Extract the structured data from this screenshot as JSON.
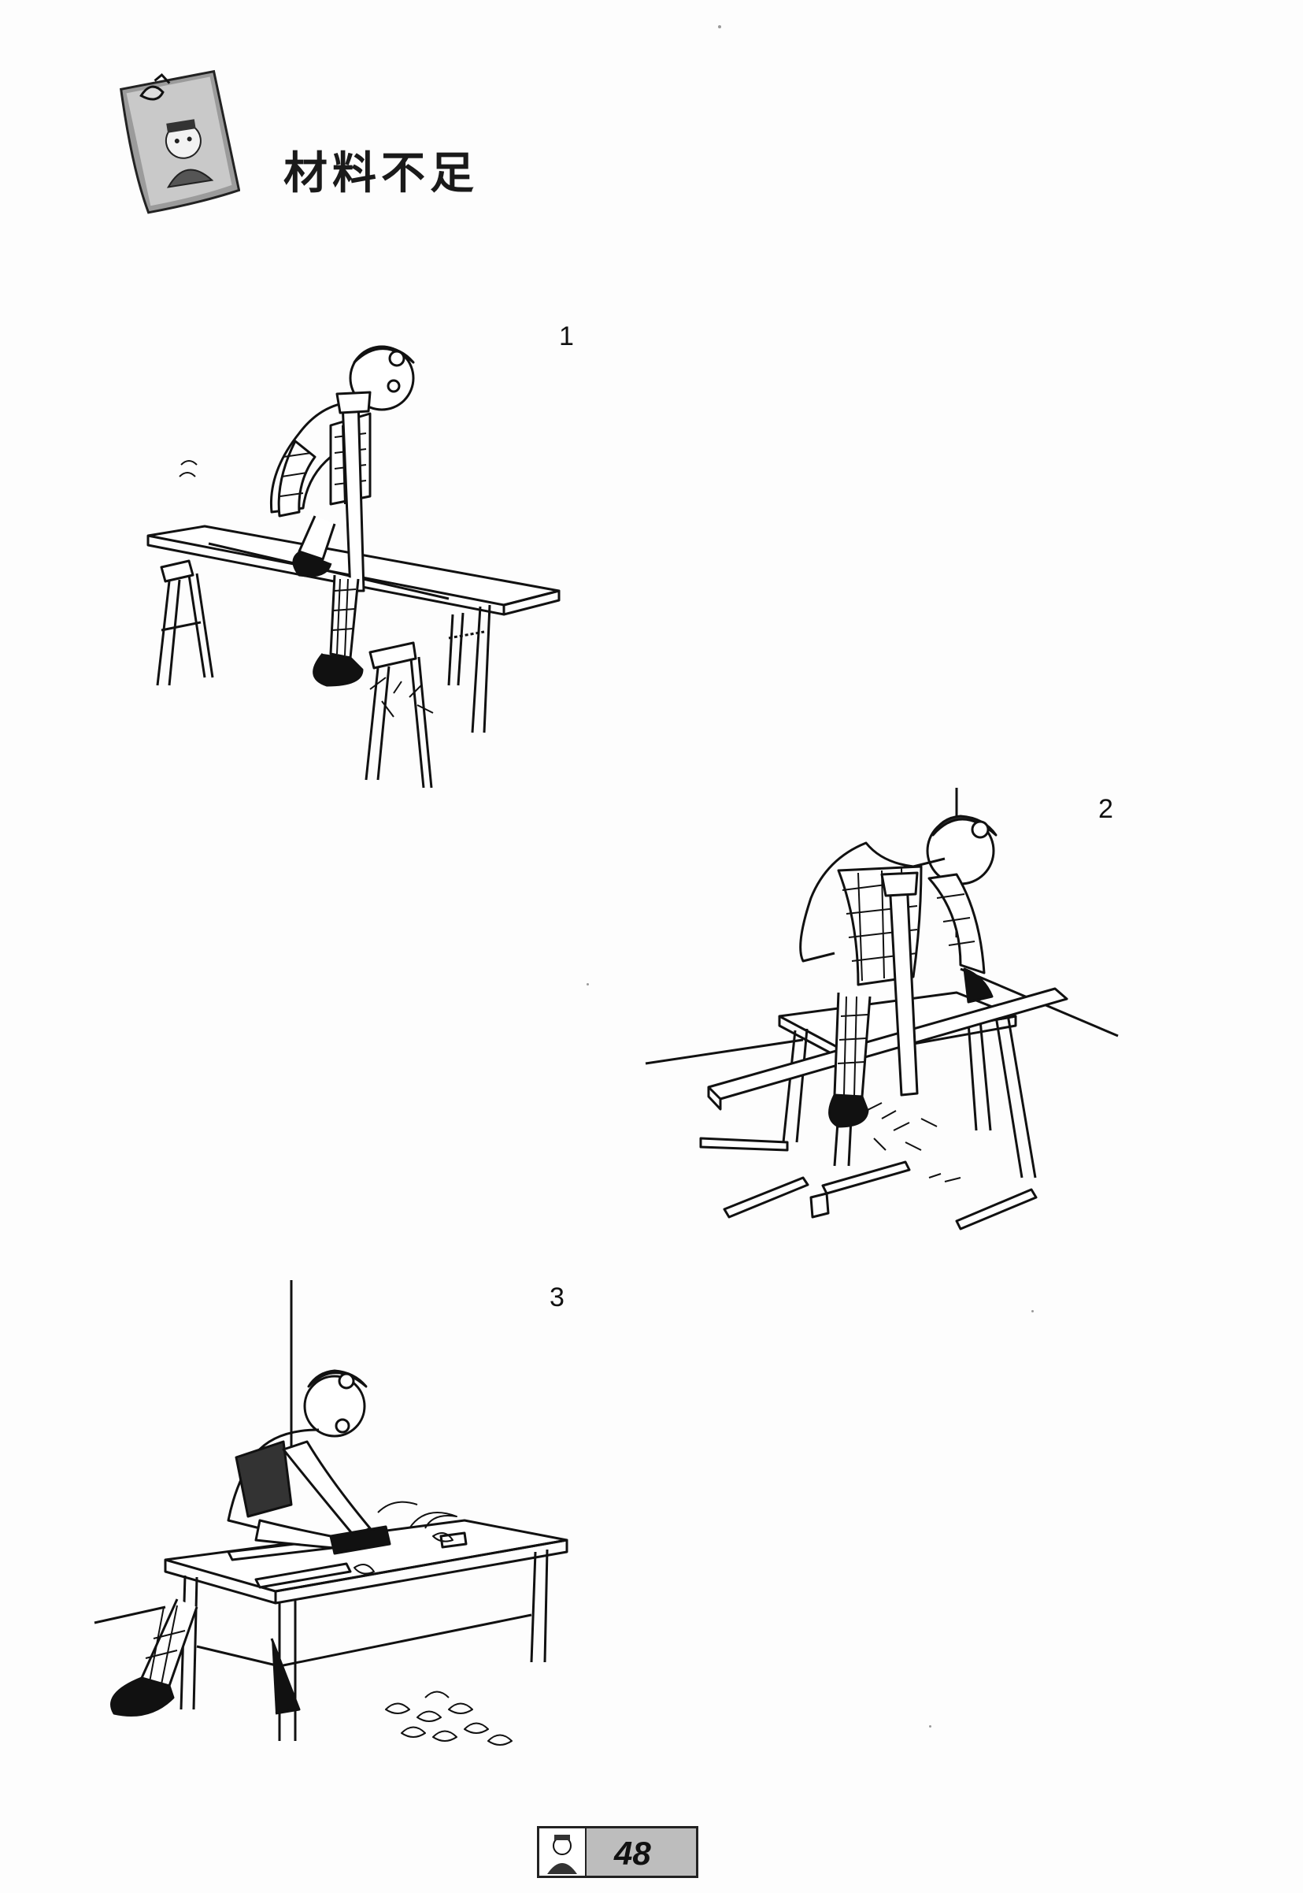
{
  "title": "材料不足",
  "panels": [
    {
      "number": "1"
    },
    {
      "number": "2"
    },
    {
      "number": "3"
    }
  ],
  "footer": {
    "page_number": "48"
  },
  "icons": {
    "header": "pinned-portrait-note-icon",
    "footer": "portrait-avatar-icon"
  }
}
